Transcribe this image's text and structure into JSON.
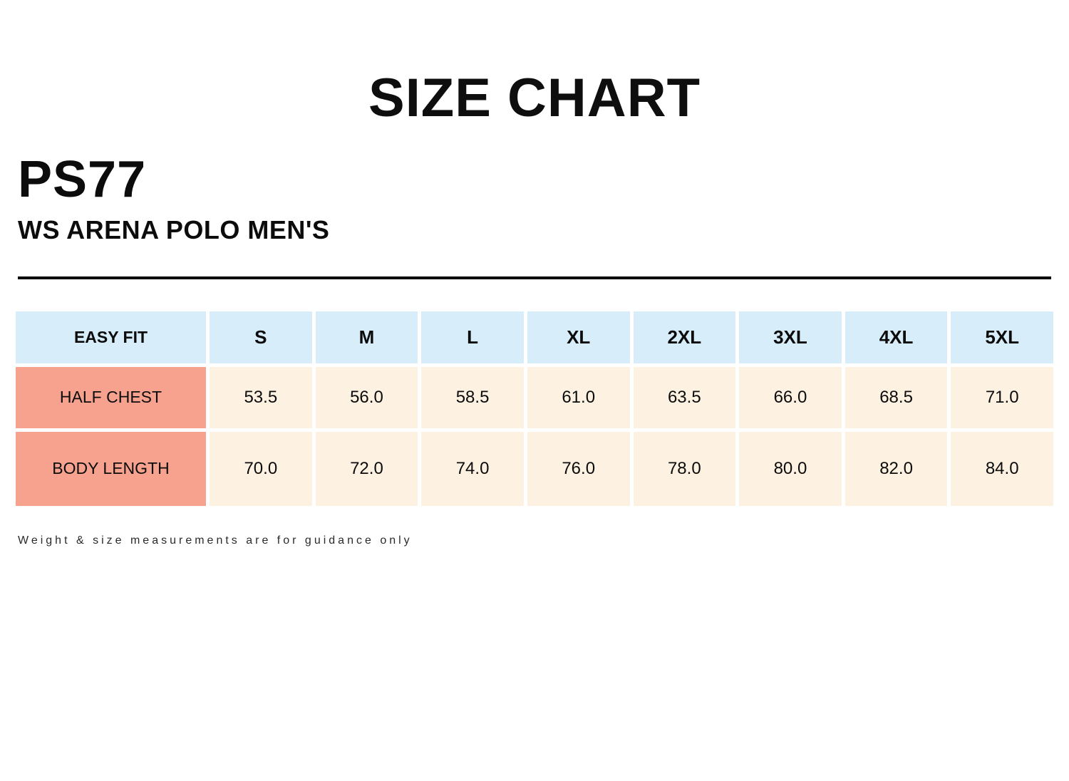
{
  "header": {
    "title": "SIZE CHART"
  },
  "product": {
    "code": "PS77",
    "name": "WS ARENA POLO MEN'S"
  },
  "table": {
    "fit_label": "EASY FIT",
    "sizes": [
      "S",
      "M",
      "L",
      "XL",
      "2XL",
      "3XL",
      "4XL",
      "5XL"
    ],
    "rows": [
      {
        "label": "HALF CHEST",
        "values": [
          "53.5",
          "56.0",
          "58.5",
          "61.0",
          "63.5",
          "66.0",
          "68.5",
          "71.0"
        ]
      },
      {
        "label": "BODY LENGTH",
        "values": [
          "70.0",
          "72.0",
          "74.0",
          "76.0",
          "78.0",
          "80.0",
          "82.0",
          "84.0"
        ]
      }
    ],
    "colors": {
      "header_bg": "#d8edfa",
      "label_bg": "#f6a28e",
      "value_bg": "#fdf1e2"
    }
  },
  "footer": {
    "note": "Weight & size measurements are for guidance only"
  },
  "chart_data": {
    "type": "table",
    "title": "SIZE CHART",
    "product_code": "PS77",
    "product_name": "WS ARENA POLO MEN'S",
    "fit": "EASY FIT",
    "categories": [
      "S",
      "M",
      "L",
      "XL",
      "2XL",
      "3XL",
      "4XL",
      "5XL"
    ],
    "series": [
      {
        "name": "HALF CHEST",
        "values": [
          53.5,
          56.0,
          58.5,
          61.0,
          63.5,
          66.0,
          68.5,
          71.0
        ]
      },
      {
        "name": "BODY LENGTH",
        "values": [
          70.0,
          72.0,
          74.0,
          76.0,
          78.0,
          80.0,
          82.0,
          84.0
        ]
      }
    ],
    "note": "Weight & size measurements are for guidance only"
  }
}
